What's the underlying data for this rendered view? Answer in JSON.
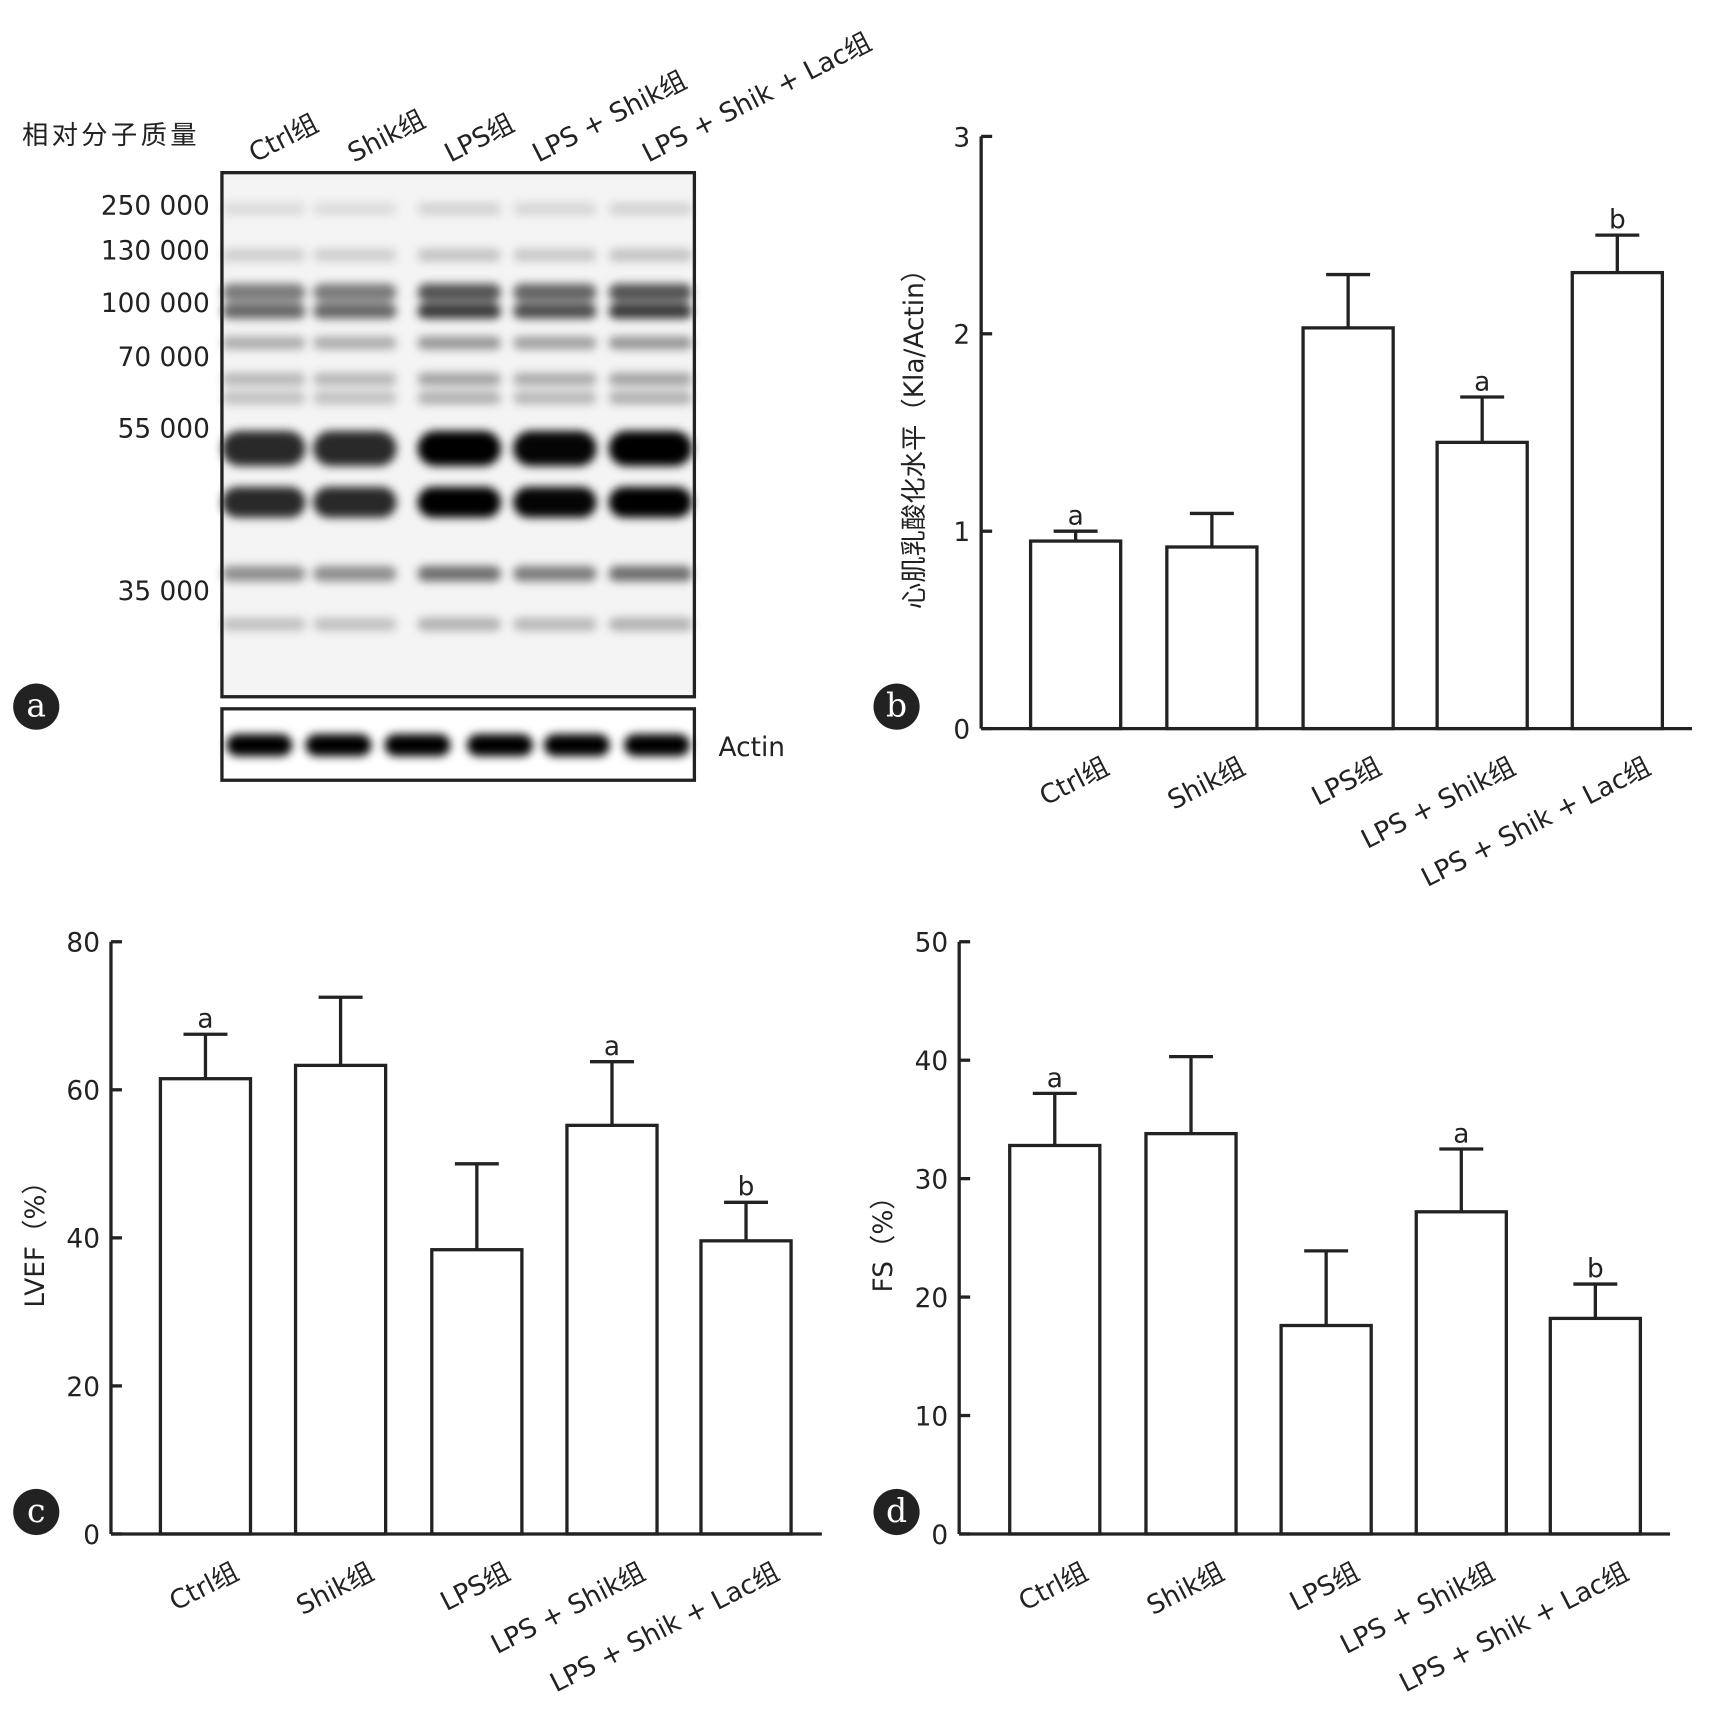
{
  "blot": {
    "panel_label": "a",
    "mw_title": "相对分子质量",
    "lanes": [
      "Ctrl组",
      "Shik组",
      "LPS组",
      "LPS + Shik组",
      "LPS + Shik + Lac组"
    ],
    "mw_markers": [
      "250 000",
      "130 000",
      "100 000",
      "70 000",
      "55 000",
      "35 000"
    ],
    "loading_control": "Actin"
  },
  "chart_data": [
    {
      "type": "bar",
      "panel_label": "b",
      "y_label": "心肌乳酸化水平（Kla/Actin）",
      "categories": [
        "Ctrl组",
        "Shik组",
        "LPS组",
        "LPS + Shik组",
        "LPS + Shik + Lac组"
      ],
      "values": [
        0.95,
        0.92,
        2.03,
        1.45,
        2.31
      ],
      "errors": [
        0.05,
        0.17,
        0.27,
        0.23,
        0.19
      ],
      "sig_labels": [
        "a",
        null,
        null,
        "a",
        "b"
      ],
      "ylim": [
        0,
        3
      ],
      "yticks": [
        0,
        1,
        2,
        3
      ],
      "color": "#ffffff"
    },
    {
      "type": "bar",
      "panel_label": "c",
      "y_label": "LVEF（%）",
      "categories": [
        "Ctrl组",
        "Shik组",
        "LPS组",
        "LPS + Shik组",
        "LPS + Shik + Lac组"
      ],
      "values": [
        61.5,
        63.3,
        38.4,
        55.2,
        39.6
      ],
      "errors": [
        6,
        9.2,
        11.6,
        8.6,
        5.2
      ],
      "sig_labels": [
        "a",
        null,
        null,
        "a",
        "b"
      ],
      "ylim": [
        0,
        80
      ],
      "yticks": [
        0,
        20,
        40,
        60,
        80
      ],
      "color": "#ffffff"
    },
    {
      "type": "bar",
      "panel_label": "d",
      "y_label": "FS（%）",
      "categories": [
        "Ctrl组",
        "Shik组",
        "LPS组",
        "LPS + Shik组",
        "LPS + Shik + Lac组"
      ],
      "values": [
        32.8,
        33.8,
        17.6,
        27.2,
        18.2
      ],
      "errors": [
        4.4,
        6.5,
        6.3,
        5.3,
        2.9
      ],
      "sig_labels": [
        "a",
        null,
        null,
        "a",
        "b"
      ],
      "ylim": [
        0,
        50
      ],
      "yticks": [
        0,
        10,
        20,
        30,
        40,
        50
      ],
      "color": "#ffffff"
    }
  ]
}
